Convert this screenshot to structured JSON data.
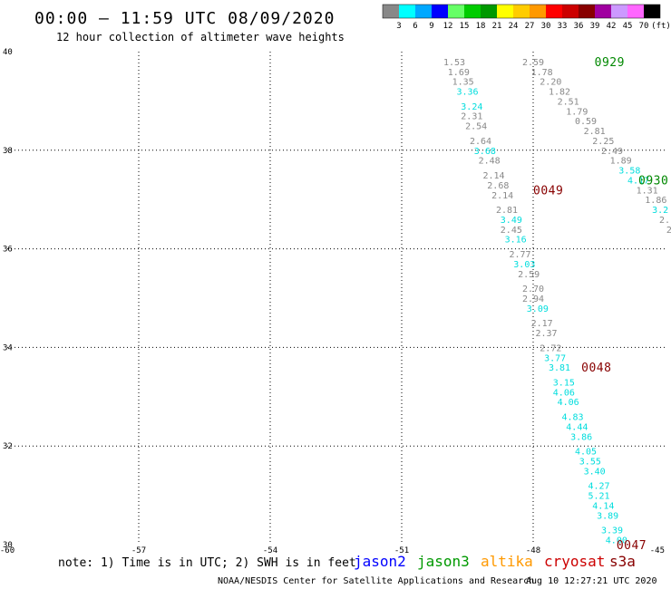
{
  "header": {
    "title": "00:00 – 11:59 UTC 08/09/2020",
    "subtitle": "12 hour collection of altimeter wave heights"
  },
  "colorbar": {
    "labels": [
      "3",
      "6",
      "9",
      "12",
      "15",
      "18",
      "21",
      "24",
      "27",
      "30",
      "33",
      "36",
      "39",
      "42",
      "45",
      "70"
    ],
    "unit": "(ft)",
    "colors": [
      "#888888",
      "#00ffff",
      "#00a8ff",
      "#0000ff",
      "#66ff66",
      "#00cc00",
      "#009900",
      "#ffff00",
      "#ffcc00",
      "#ff9900",
      "#ff0000",
      "#cc0000",
      "#880000",
      "#a000a0",
      "#cc99ff",
      "#ff66ff",
      "#000000"
    ]
  },
  "footer": {
    "note": "note: 1) Time is in UTC; 2) SWH is in feet",
    "satellites": [
      {
        "name": "jason2",
        "color": "#0000ff"
      },
      {
        "name": "jason3",
        "color": "#009900"
      },
      {
        "name": "altika",
        "color": "#ff9900"
      },
      {
        "name": "cryosat",
        "color": "#cc0000"
      },
      {
        "name": "s3a",
        "color": "#880000"
      }
    ],
    "credit": "NOAA/NESDIS Center for Satellite Applications and Research",
    "generated": "Aug 10 12:27:21 UTC 2020"
  },
  "chart_data": {
    "type": "scatter",
    "x_tick_labels": [
      "-60",
      "-57",
      "-54",
      "-51",
      "-48",
      "-45"
    ],
    "y_tick_labels": [
      "30",
      "32",
      "34",
      "36",
      "38",
      "40"
    ],
    "xlim": [
      -60,
      -45
    ],
    "ylim": [
      30,
      40
    ],
    "grid": true,
    "time_labels": [
      {
        "text": "0929",
        "lon": -46.6,
        "lat": 39.8,
        "color": "#008800"
      },
      {
        "text": "0930",
        "lon": -45.6,
        "lat": 37.4,
        "color": "#008800"
      },
      {
        "text": "0049",
        "lon": -48.0,
        "lat": 37.2,
        "color": "#880000"
      },
      {
        "text": "0048",
        "lon": -46.9,
        "lat": 33.6,
        "color": "#880000"
      },
      {
        "text": "0047",
        "lon": -46.1,
        "lat": 30.0,
        "color": "#880000"
      }
    ],
    "series": [
      {
        "points": [
          {
            "lon": -49.8,
            "lat": 39.8,
            "v": "1.53",
            "c": "#888888"
          },
          {
            "lon": -49.7,
            "lat": 39.6,
            "v": "1.69",
            "c": "#888888"
          },
          {
            "lon": -49.6,
            "lat": 39.4,
            "v": "1.35",
            "c": "#888888"
          },
          {
            "lon": -49.5,
            "lat": 39.2,
            "v": "3.36",
            "c": "#00dddd"
          },
          {
            "lon": -49.4,
            "lat": 38.9,
            "v": "3.24",
            "c": "#00dddd"
          },
          {
            "lon": -49.4,
            "lat": 38.7,
            "v": "2.31",
            "c": "#888888"
          },
          {
            "lon": -49.3,
            "lat": 38.5,
            "v": "2.54",
            "c": "#888888"
          },
          {
            "lon": -49.2,
            "lat": 38.2,
            "v": "2.64",
            "c": "#888888"
          },
          {
            "lon": -49.1,
            "lat": 38.0,
            "v": "3.68",
            "c": "#00dddd"
          },
          {
            "lon": -49.0,
            "lat": 37.8,
            "v": "2.48",
            "c": "#888888"
          },
          {
            "lon": -48.9,
            "lat": 37.5,
            "v": "2.14",
            "c": "#888888"
          },
          {
            "lon": -48.8,
            "lat": 37.3,
            "v": "2.68",
            "c": "#888888"
          },
          {
            "lon": -48.7,
            "lat": 37.1,
            "v": "2.14",
            "c": "#888888"
          },
          {
            "lon": -48.6,
            "lat": 36.8,
            "v": "2.81",
            "c": "#888888"
          },
          {
            "lon": -48.5,
            "lat": 36.6,
            "v": "3.49",
            "c": "#00dddd"
          },
          {
            "lon": -48.5,
            "lat": 36.4,
            "v": "2.45",
            "c": "#888888"
          },
          {
            "lon": -48.4,
            "lat": 36.2,
            "v": "3.16",
            "c": "#00dddd"
          },
          {
            "lon": -48.3,
            "lat": 35.9,
            "v": "2.77",
            "c": "#888888"
          },
          {
            "lon": -48.2,
            "lat": 35.7,
            "v": "3.03",
            "c": "#00dddd"
          },
          {
            "lon": -48.1,
            "lat": 35.5,
            "v": "2.59",
            "c": "#888888"
          },
          {
            "lon": -48.0,
            "lat": 35.2,
            "v": "2.70",
            "c": "#888888"
          },
          {
            "lon": -48.0,
            "lat": 35.0,
            "v": "2.94",
            "c": "#888888"
          },
          {
            "lon": -47.9,
            "lat": 34.8,
            "v": "3.09",
            "c": "#00dddd"
          },
          {
            "lon": -47.8,
            "lat": 34.5,
            "v": "2.17",
            "c": "#888888"
          },
          {
            "lon": -47.7,
            "lat": 34.3,
            "v": "2.37",
            "c": "#888888"
          },
          {
            "lon": -47.6,
            "lat": 34.0,
            "v": "2.72",
            "c": "#888888"
          },
          {
            "lon": -47.5,
            "lat": 33.8,
            "v": "3.77",
            "c": "#00dddd"
          },
          {
            "lon": -47.4,
            "lat": 33.6,
            "v": "3.81",
            "c": "#00dddd"
          },
          {
            "lon": -47.3,
            "lat": 33.3,
            "v": "3.15",
            "c": "#00dddd"
          },
          {
            "lon": -47.3,
            "lat": 33.1,
            "v": "4.06",
            "c": "#00dddd"
          },
          {
            "lon": -47.2,
            "lat": 32.9,
            "v": "4.06",
            "c": "#00dddd"
          },
          {
            "lon": -47.1,
            "lat": 32.6,
            "v": "4.83",
            "c": "#00dddd"
          },
          {
            "lon": -47.0,
            "lat": 32.4,
            "v": "4.44",
            "c": "#00dddd"
          },
          {
            "lon": -46.9,
            "lat": 32.2,
            "v": "3.86",
            "c": "#00dddd"
          },
          {
            "lon": -46.8,
            "lat": 31.9,
            "v": "4.05",
            "c": "#00dddd"
          },
          {
            "lon": -46.7,
            "lat": 31.7,
            "v": "3.55",
            "c": "#00dddd"
          },
          {
            "lon": -46.6,
            "lat": 31.5,
            "v": "3.40",
            "c": "#00dddd"
          },
          {
            "lon": -46.5,
            "lat": 31.2,
            "v": "4.27",
            "c": "#00dddd"
          },
          {
            "lon": -46.5,
            "lat": 31.0,
            "v": "5.21",
            "c": "#00dddd"
          },
          {
            "lon": -46.4,
            "lat": 30.8,
            "v": "4.14",
            "c": "#00dddd"
          },
          {
            "lon": -46.3,
            "lat": 30.6,
            "v": "3.89",
            "c": "#00dddd"
          },
          {
            "lon": -46.2,
            "lat": 30.3,
            "v": "3.39",
            "c": "#00dddd"
          },
          {
            "lon": -46.1,
            "lat": 30.1,
            "v": "4.00",
            "c": "#00dddd"
          }
        ]
      },
      {
        "points": [
          {
            "lon": -48.0,
            "lat": 39.8,
            "v": "2.59",
            "c": "#888888"
          },
          {
            "lon": -47.8,
            "lat": 39.6,
            "v": "1.78",
            "c": "#888888"
          },
          {
            "lon": -47.6,
            "lat": 39.4,
            "v": "2.20",
            "c": "#888888"
          },
          {
            "lon": -47.4,
            "lat": 39.2,
            "v": "1.82",
            "c": "#888888"
          },
          {
            "lon": -47.2,
            "lat": 39.0,
            "v": "2.51",
            "c": "#888888"
          },
          {
            "lon": -47.0,
            "lat": 38.8,
            "v": "1.79",
            "c": "#888888"
          },
          {
            "lon": -46.8,
            "lat": 38.6,
            "v": "0.59",
            "c": "#888888"
          },
          {
            "lon": -46.6,
            "lat": 38.4,
            "v": "2.81",
            "c": "#888888"
          },
          {
            "lon": -46.4,
            "lat": 38.2,
            "v": "2.25",
            "c": "#888888"
          },
          {
            "lon": -46.2,
            "lat": 38.0,
            "v": "2.49",
            "c": "#888888"
          },
          {
            "lon": -46.0,
            "lat": 37.8,
            "v": "1.89",
            "c": "#888888"
          },
          {
            "lon": -45.8,
            "lat": 37.6,
            "v": "3.58",
            "c": "#00dddd"
          },
          {
            "lon": -45.6,
            "lat": 37.4,
            "v": "4.17",
            "c": "#00dddd"
          },
          {
            "lon": -45.4,
            "lat": 37.2,
            "v": "1.31",
            "c": "#888888"
          },
          {
            "lon": -45.2,
            "lat": 37.0,
            "v": "1.86",
            "c": "#888888"
          },
          {
            "lon": -45.1,
            "lat": 36.8,
            "v": "3.2",
            "c": "#00dddd"
          },
          {
            "lon": -45.0,
            "lat": 36.6,
            "v": "2.",
            "c": "#888888"
          },
          {
            "lon": -44.9,
            "lat": 36.4,
            "v": "2",
            "c": "#888888"
          }
        ]
      }
    ]
  }
}
